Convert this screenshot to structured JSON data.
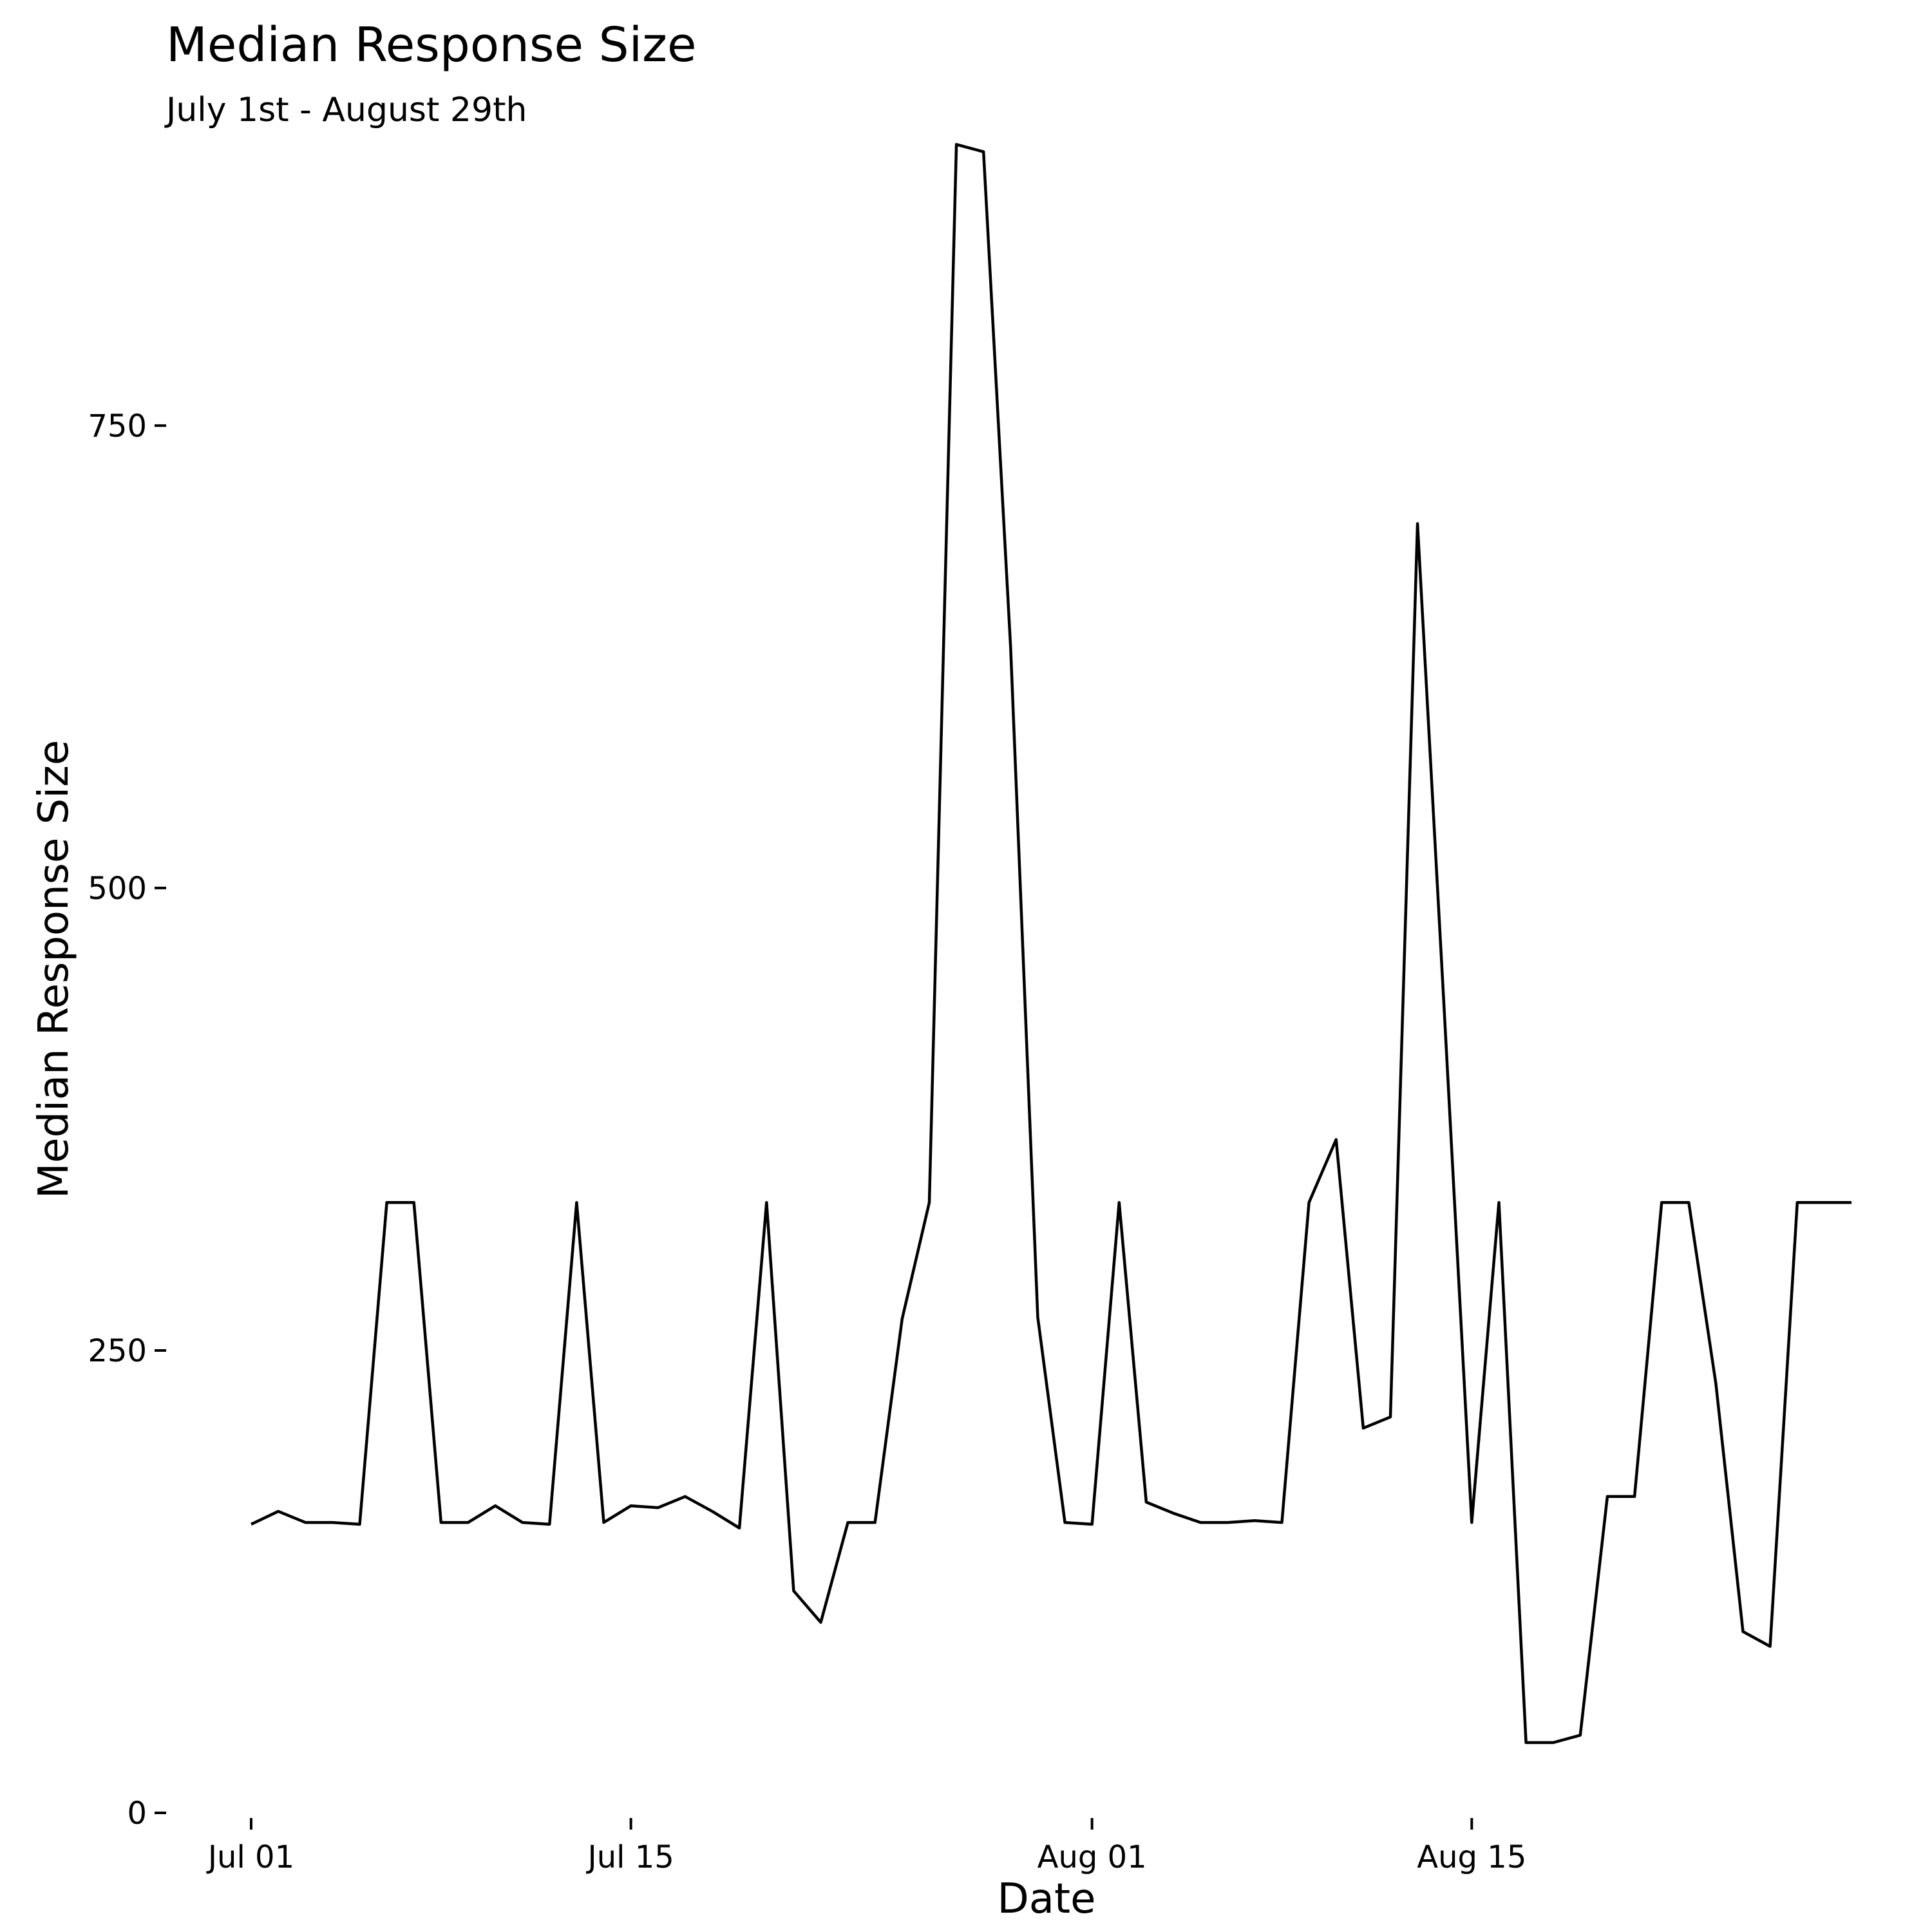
{
  "chart_data": {
    "type": "line",
    "title": "Median Response Size",
    "subtitle": "July 1st - August 29th",
    "xlabel": "Date",
    "ylabel": "Median Response Size",
    "x_tick_labels": [
      {
        "date": "2023-07-01",
        "label": "Jul 01"
      },
      {
        "date": "2023-07-15",
        "label": "Jul 15"
      },
      {
        "date": "2023-08-01",
        "label": "Aug 01"
      },
      {
        "date": "2023-08-15",
        "label": "Aug 15"
      }
    ],
    "y_ticks": [
      0,
      250,
      500,
      750
    ],
    "ylim": [
      0,
      900
    ],
    "xlim": [
      "2023-07-01",
      "2023-08-29"
    ],
    "grid": false,
    "line_color": "#000000",
    "series": [
      {
        "x": [
          "2023-07-01",
          "2023-07-02",
          "2023-07-03",
          "2023-07-04",
          "2023-07-05",
          "2023-07-06",
          "2023-07-07",
          "2023-07-08",
          "2023-07-09",
          "2023-07-10",
          "2023-07-11",
          "2023-07-12",
          "2023-07-13",
          "2023-07-14",
          "2023-07-15",
          "2023-07-16",
          "2023-07-17",
          "2023-07-18",
          "2023-07-19",
          "2023-07-20",
          "2023-07-21",
          "2023-07-22",
          "2023-07-23",
          "2023-07-24",
          "2023-07-25",
          "2023-07-26",
          "2023-07-27",
          "2023-07-28",
          "2023-07-29",
          "2023-07-30",
          "2023-07-31",
          "2023-08-01",
          "2023-08-02",
          "2023-08-03",
          "2023-08-04",
          "2023-08-05",
          "2023-08-06",
          "2023-08-07",
          "2023-08-08",
          "2023-08-09",
          "2023-08-10",
          "2023-08-11",
          "2023-08-12",
          "2023-08-13",
          "2023-08-14",
          "2023-08-15",
          "2023-08-16",
          "2023-08-17",
          "2023-08-18",
          "2023-08-19",
          "2023-08-20",
          "2023-08-21",
          "2023-08-22",
          "2023-08-23",
          "2023-08-24",
          "2023-08-25",
          "2023-08-26",
          "2023-08-27",
          "2023-08-28",
          "2023-08-29"
        ],
        "values": [
          156,
          163,
          157,
          157,
          156,
          330,
          330,
          157,
          157,
          166,
          157,
          156,
          330,
          157,
          166,
          165,
          171,
          163,
          154,
          330,
          120,
          103,
          157,
          157,
          267,
          330,
          902,
          898,
          630,
          268,
          157,
          156,
          330,
          168,
          162,
          157,
          157,
          158,
          157,
          330,
          364,
          208,
          214,
          697,
          430,
          157,
          330,
          38,
          38,
          42,
          171,
          171,
          330,
          330,
          232,
          98,
          90,
          330,
          330,
          330
        ]
      }
    ]
  }
}
